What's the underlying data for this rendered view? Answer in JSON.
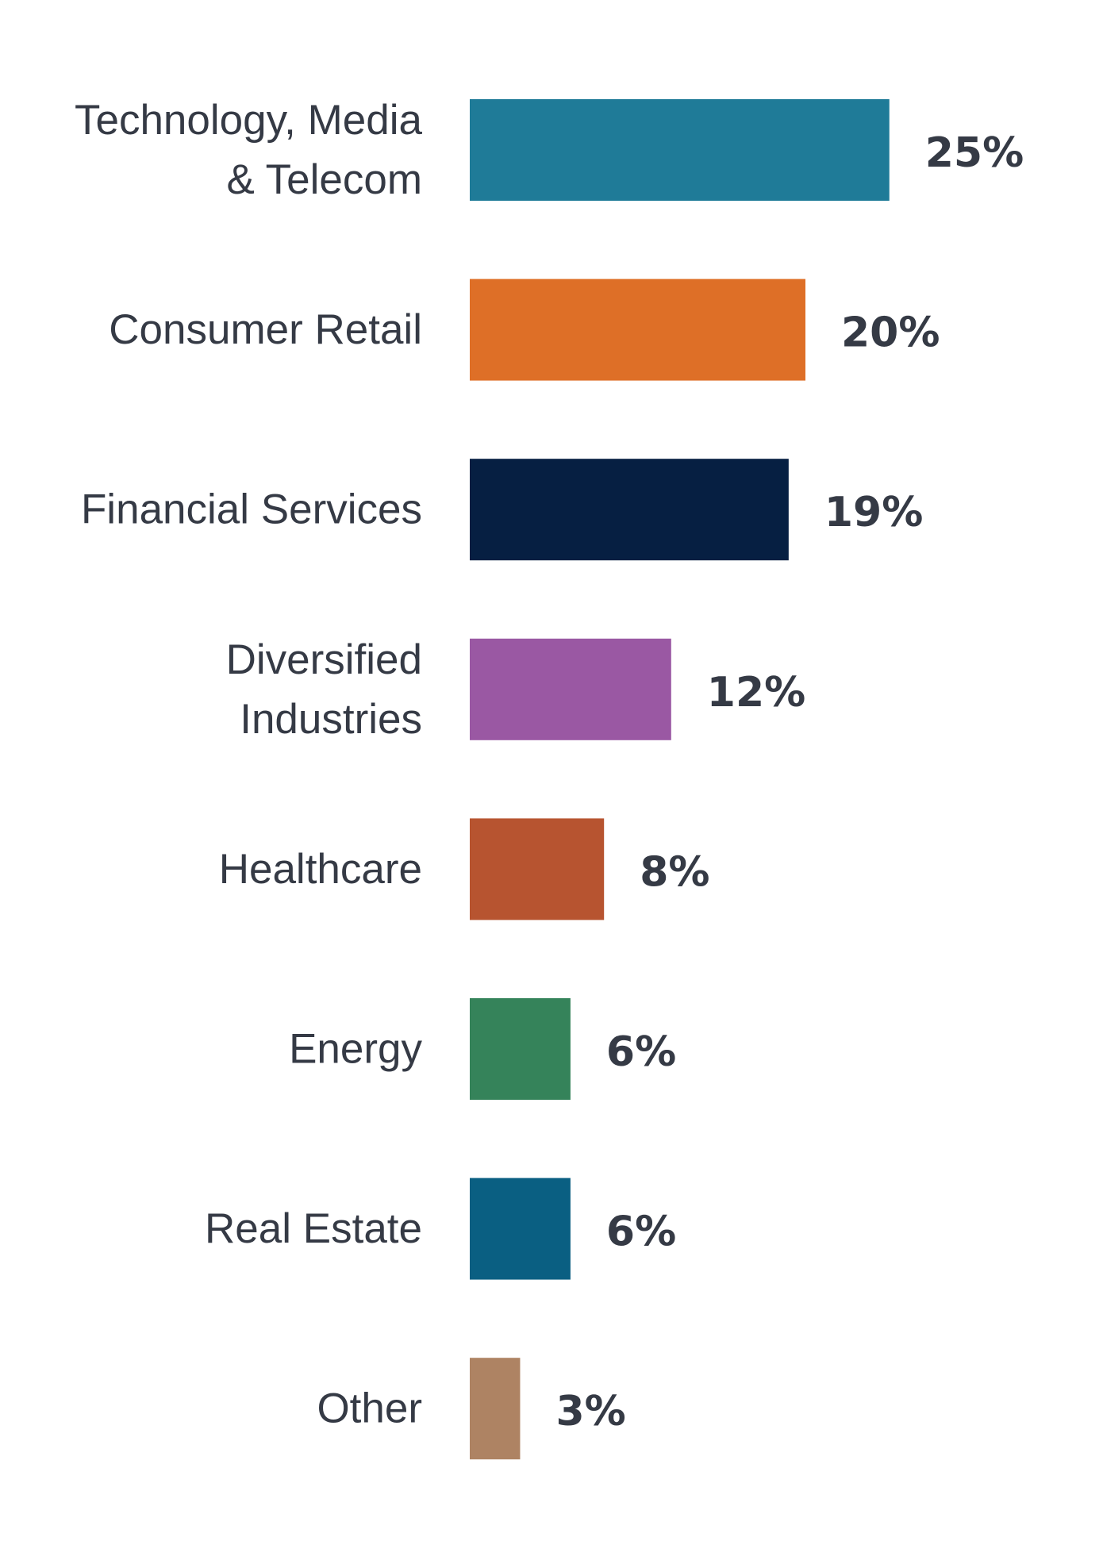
{
  "chart_data": {
    "type": "bar",
    "orientation": "horizontal",
    "title": "",
    "xlabel": "",
    "ylabel": "",
    "categories": [
      [
        "Technology, Media",
        "& Telecom"
      ],
      [
        "Consumer Retail"
      ],
      [
        "Financial Services"
      ],
      [
        "Diversified",
        "Industries"
      ],
      [
        "Healthcare"
      ],
      [
        "Energy"
      ],
      [
        "Real Estate"
      ],
      [
        "Other"
      ]
    ],
    "values": [
      25,
      20,
      19,
      12,
      8,
      6,
      6,
      3
    ],
    "value_labels": [
      "25%",
      "20%",
      "19%",
      "12%",
      "8%",
      "6%",
      "6%",
      "3%"
    ],
    "colors": [
      "#1f7b98",
      "#de6f27",
      "#061f42",
      "#9a58a3",
      "#b75430",
      "#35835a",
      "#0a5f82",
      "#ae8363"
    ],
    "unit": "%",
    "grid": false,
    "legend": "none"
  }
}
